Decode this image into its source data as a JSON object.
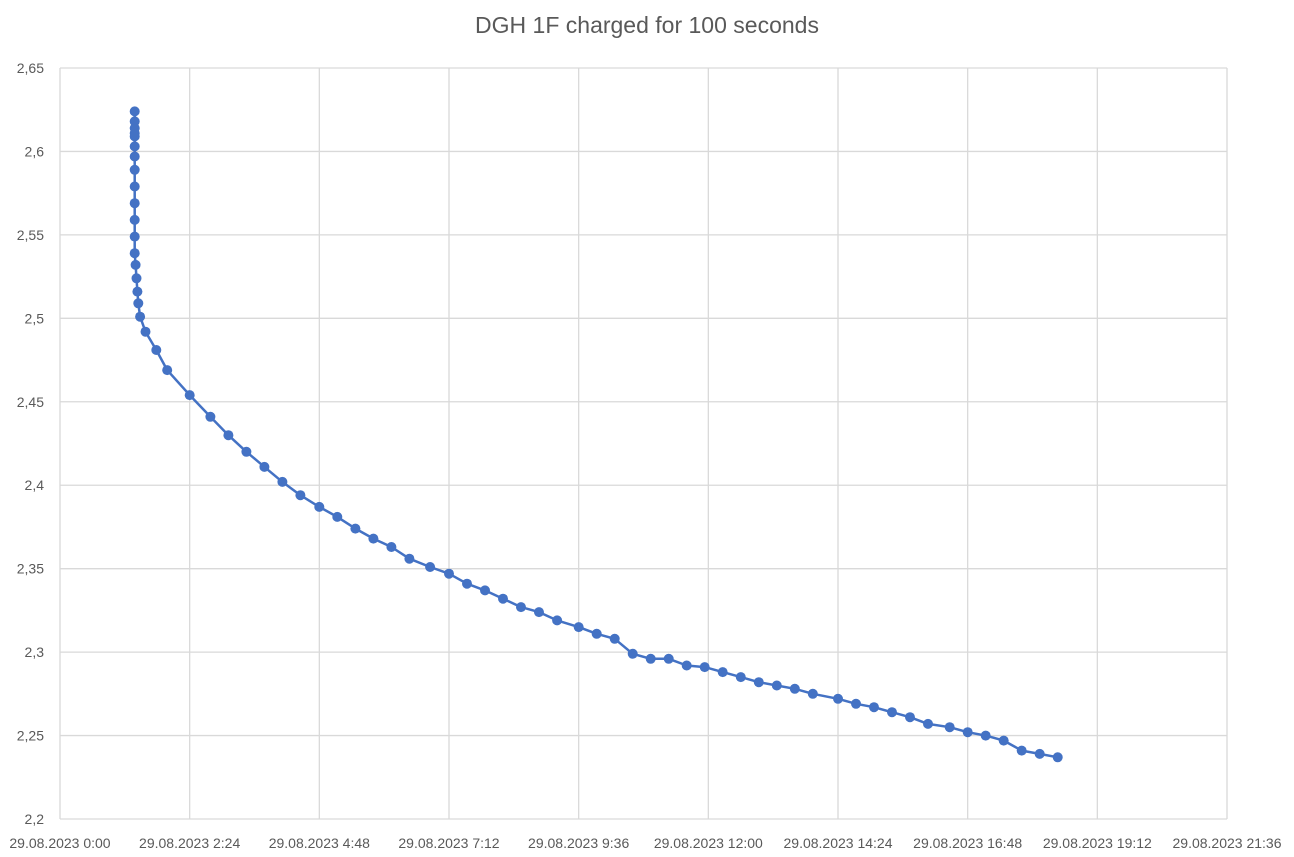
{
  "chart_data": {
    "type": "scatter",
    "title": "DGH 1F charged for 100 seconds",
    "xlabel": "",
    "ylabel": "",
    "x_axis": {
      "min": "29.08.2023 0:00",
      "max": "29.08.2023 21:36",
      "tick_labels": [
        "29.08.2023 0:00",
        "29.08.2023 2:24",
        "29.08.2023 4:48",
        "29.08.2023 7:12",
        "29.08.2023 9:36",
        "29.08.2023 12:00",
        "29.08.2023 14:24",
        "29.08.2023 16:48",
        "29.08.2023 19:12",
        "29.08.2023 21:36"
      ]
    },
    "y_axis": {
      "min": 2.2,
      "max": 2.65,
      "tick_labels": [
        "2,2",
        "2,25",
        "2,3",
        "2,35",
        "2,4",
        "2,45",
        "2,5",
        "2,55",
        "2,6",
        "2,65"
      ]
    },
    "grid": true,
    "line_color": "#4472C4",
    "series": [
      {
        "x": [
          "29.08.2023 1:23",
          "29.08.2023 1:23",
          "29.08.2023 1:23",
          "29.08.2023 1:23",
          "29.08.2023 1:23",
          "29.08.2023 1:23",
          "29.08.2023 1:23",
          "29.08.2023 1:23",
          "29.08.2023 1:23",
          "29.08.2023 1:23",
          "29.08.2023 1:23",
          "29.08.2023 1:23",
          "29.08.2023 1:23",
          "29.08.2023 1:24",
          "29.08.2023 1:25",
          "29.08.2023 1:26",
          "29.08.2023 1:27",
          "29.08.2023 1:29",
          "29.08.2023 1:35",
          "29.08.2023 1:47",
          "29.08.2023 1:59",
          "29.08.2023 2:24",
          "29.08.2023 2:47",
          "29.08.2023 3:07",
          "29.08.2023 3:27",
          "29.08.2023 3:47",
          "29.08.2023 4:07",
          "29.08.2023 4:27",
          "29.08.2023 4:48",
          "29.08.2023 5:08",
          "29.08.2023 5:28",
          "29.08.2023 5:48",
          "29.08.2023 6:08",
          "29.08.2023 6:28",
          "29.08.2023 6:51",
          "29.08.2023 7:12",
          "29.08.2023 7:32",
          "29.08.2023 7:52",
          "29.08.2023 8:12",
          "29.08.2023 8:32",
          "29.08.2023 8:52",
          "29.08.2023 9:12",
          "29.08.2023 9:36",
          "29.08.2023 9:56",
          "29.08.2023 10:16",
          "29.08.2023 10:36",
          "29.08.2023 10:56",
          "29.08.2023 11:16",
          "29.08.2023 11:36",
          "29.08.2023 11:56",
          "29.08.2023 12:16",
          "29.08.2023 12:36",
          "29.08.2023 12:56",
          "29.08.2023 13:16",
          "29.08.2023 13:36",
          "29.08.2023 13:56",
          "29.08.2023 14:24",
          "29.08.2023 14:44",
          "29.08.2023 15:04",
          "29.08.2023 15:24",
          "29.08.2023 15:44",
          "29.08.2023 16:04",
          "29.08.2023 16:28",
          "29.08.2023 16:48",
          "29.08.2023 17:08",
          "29.08.2023 17:28",
          "29.08.2023 17:48",
          "29.08.2023 18:08",
          "29.08.2023 18:28"
        ],
        "y": [
          2.624,
          2.618,
          2.614,
          2.611,
          2.609,
          2.603,
          2.597,
          2.589,
          2.579,
          2.569,
          2.559,
          2.549,
          2.539,
          2.532,
          2.524,
          2.516,
          2.509,
          2.501,
          2.492,
          2.481,
          2.469,
          2.454,
          2.441,
          2.43,
          2.42,
          2.411,
          2.402,
          2.394,
          2.387,
          2.381,
          2.374,
          2.368,
          2.363,
          2.356,
          2.351,
          2.347,
          2.341,
          2.337,
          2.332,
          2.327,
          2.324,
          2.319,
          2.315,
          2.311,
          2.308,
          2.299,
          2.296,
          2.296,
          2.292,
          2.291,
          2.288,
          2.285,
          2.282,
          2.28,
          2.278,
          2.275,
          2.272,
          2.269,
          2.267,
          2.264,
          2.261,
          2.257,
          2.255,
          2.252,
          2.25,
          2.247,
          2.241,
          2.239,
          2.237
        ]
      }
    ]
  }
}
